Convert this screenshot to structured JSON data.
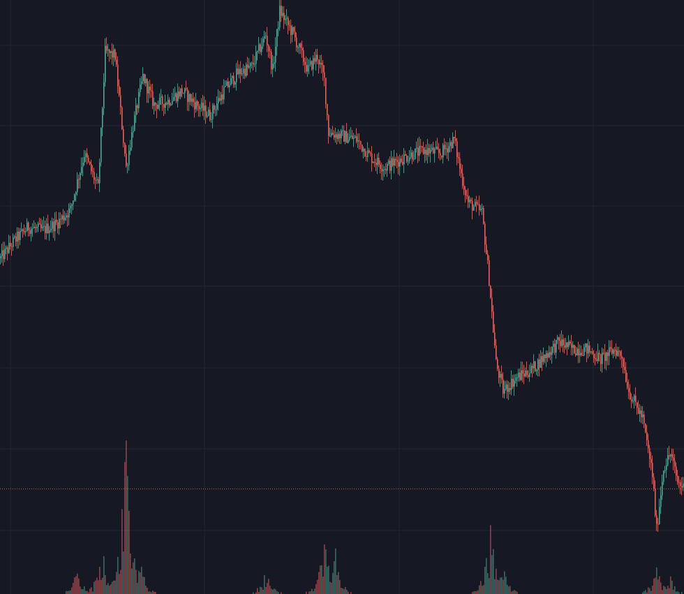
{
  "chart_data": {
    "type": "candlestick",
    "title": "",
    "xlabel": "",
    "ylabel": "",
    "axes_labels_visible": false,
    "grid": true,
    "price_path": {
      "x": [
        0,
        10,
        20,
        30,
        40,
        50,
        60,
        70,
        75,
        82,
        90,
        95,
        102,
        110,
        120,
        130,
        140,
        150,
        160,
        170,
        180,
        190,
        195,
        200,
        210,
        220,
        227,
        232,
        235,
        245,
        255,
        265,
        275,
        285,
        295,
        305,
        315,
        325,
        330,
        335,
        345,
        350,
        355,
        360,
        370,
        380,
        390,
        400,
        410,
        420,
        430,
        440,
        445,
        450,
        460,
        467,
        470,
        475,
        480,
        485,
        490
      ],
      "close": [
        56.5,
        59.5,
        61.8,
        61.2,
        62.4,
        64.7,
        74.1,
        68.3,
        91.2,
        90.6,
        71.8,
        78.8,
        87.1,
        82.4,
        83.0,
        84.7,
        82.4,
        80.6,
        84.7,
        87.7,
        88.8,
        94.1,
        88.2,
        98.2,
        94.1,
        88.2,
        90.6,
        86.5,
        77.7,
        77.1,
        76.5,
        73.6,
        71.8,
        73.0,
        74.1,
        74.7,
        74.1,
        76.5,
        70.6,
        65.9,
        64.2,
        53.0,
        38.9,
        34.2,
        36.5,
        37.7,
        40.1,
        42.4,
        41.2,
        41.2,
        39.5,
        41.2,
        40.1,
        34.2,
        29.5,
        20.1,
        10.7,
        21.3,
        23.6,
        18.9,
        17.7
      ]
    },
    "volume_spikes": {
      "x": [
        55,
        73,
        90,
        100,
        190,
        232,
        240,
        351,
        360,
        470,
        480
      ],
      "volume": [
        15,
        30,
        100,
        20,
        15,
        34,
        25,
        42,
        18,
        18,
        10
      ]
    },
    "last_price": 17.7,
    "colors": {
      "background": "#161823",
      "grid": "#242733",
      "up": "#5fa89c",
      "down": "#d9706a",
      "last_price_line": "#c0605a"
    }
  }
}
